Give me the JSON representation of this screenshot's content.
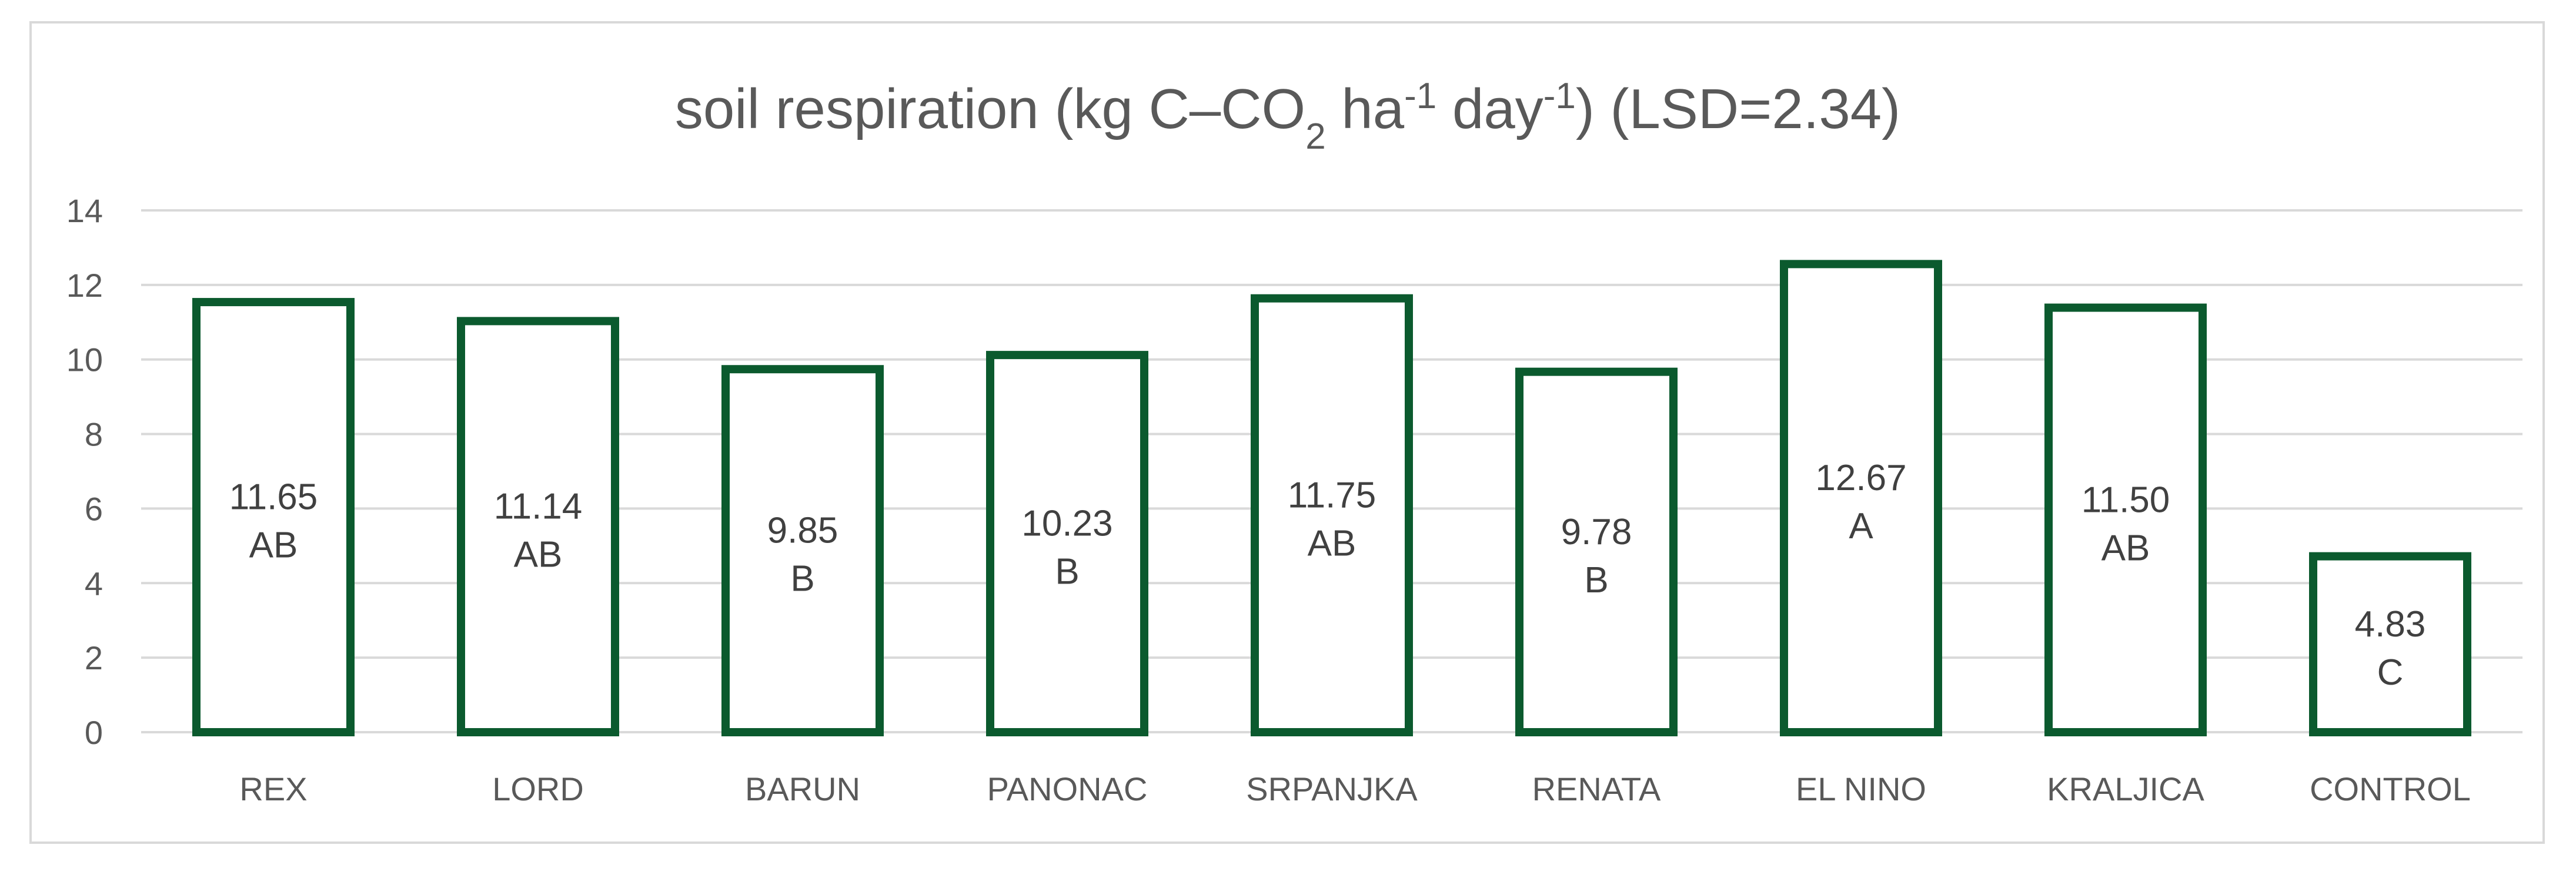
{
  "chart_data": {
    "type": "bar",
    "title": {
      "main": "soil respiration (kg C–CO",
      "sub1": "2",
      "mid1": " ha",
      "sup1": "-1",
      "mid2": " day",
      "sup2": "-1",
      "end": ") (LSD=2.34)"
    },
    "categories": [
      "REX",
      "LORD",
      "BARUN",
      "PANONAC",
      "SRPANJKA",
      "RENATA",
      "EL NINO",
      "KRALJICA",
      "CONTROL"
    ],
    "values": [
      11.65,
      11.14,
      9.85,
      10.23,
      11.75,
      9.78,
      12.67,
      11.5,
      4.83
    ],
    "value_labels": [
      "11.65",
      "11.14",
      "9.85",
      "10.23",
      "11.75",
      "9.78",
      "12.67",
      "11.50",
      "4.83"
    ],
    "group_letters": [
      "AB",
      "AB",
      "B",
      "B",
      "AB",
      "B",
      "A",
      "AB",
      "C"
    ],
    "ylim": [
      0,
      14
    ],
    "yticks": [
      "0",
      "2",
      "4",
      "6",
      "8",
      "10",
      "12",
      "14"
    ],
    "xlabel": "",
    "ylabel": "",
    "grid": true,
    "legend": "none",
    "bar_style": "outline",
    "bar_color": "#0b5a2e",
    "grid_color": "#d9d9d9"
  }
}
